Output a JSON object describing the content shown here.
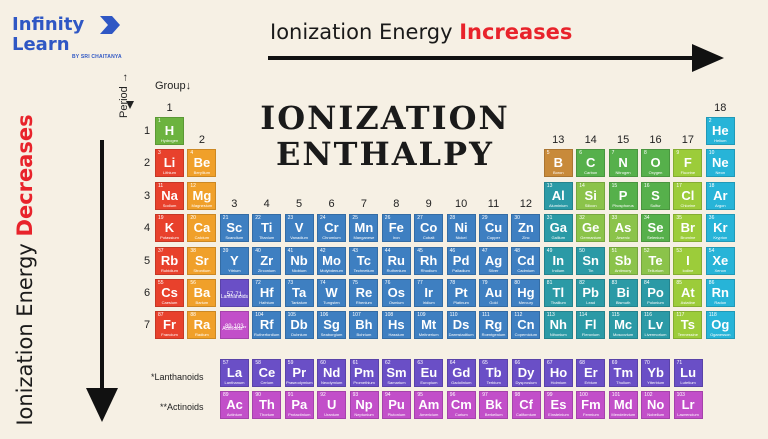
{
  "logo": {
    "line1": "Infinity",
    "line2": "Learn",
    "tagline": "BY SRI CHAITANYA"
  },
  "ie_title": {
    "prefix": "Ionization Energy ",
    "accent": "Increases"
  },
  "side_title": {
    "prefix": "Ionization Energy ",
    "accent": "Decreases"
  },
  "main_title": {
    "line1": "IONIZATION",
    "line2": "ENTHALPY"
  },
  "labels": {
    "group": "Group↓",
    "period": "Period →"
  },
  "series_labels": {
    "lanthanoids": "*Lanthanoids",
    "actinoids": "**Actinoids"
  },
  "colors": {
    "H": "#6cb33f",
    "alkali": "#e8412c",
    "alkaline": "#f0a02a",
    "transition": "#3e7fc1",
    "post": "#2b9aa6",
    "metalloid": "#8bc34a",
    "nonmetal": "#56b04b",
    "halogen": "#9ccc3a",
    "noble": "#27b4d8",
    "lan": "#6a4fc6",
    "act": "#c24fc9",
    "boron": "#c88a3a",
    "bg": "#f6f0e4",
    "accent": "#e8232b",
    "brand": "#2f57c4"
  },
  "groups": [
    "1",
    "2",
    "3",
    "4",
    "5",
    "6",
    "7",
    "8",
    "9",
    "10",
    "11",
    "12",
    "13",
    "14",
    "15",
    "16",
    "17",
    "18"
  ],
  "periods": [
    "1",
    "2",
    "3",
    "4",
    "5",
    "6",
    "7"
  ],
  "elements": [
    {
      "s": "H",
      "n": "1",
      "nm": "Hydrogen",
      "c": "H",
      "r": 1,
      "g": 1
    },
    {
      "s": "He",
      "n": "2",
      "nm": "Helium",
      "c": "noble",
      "r": 1,
      "g": 18
    },
    {
      "s": "Li",
      "n": "3",
      "nm": "Lithium",
      "c": "alkali",
      "r": 2,
      "g": 1
    },
    {
      "s": "Be",
      "n": "4",
      "nm": "Beryllium",
      "c": "alkaline",
      "r": 2,
      "g": 2
    },
    {
      "s": "B",
      "n": "5",
      "nm": "Boron",
      "c": "boron",
      "r": 2,
      "g": 13
    },
    {
      "s": "C",
      "n": "6",
      "nm": "Carbon",
      "c": "nonmetal",
      "r": 2,
      "g": 14
    },
    {
      "s": "N",
      "n": "7",
      "nm": "Nitrogen",
      "c": "nonmetal",
      "r": 2,
      "g": 15
    },
    {
      "s": "O",
      "n": "8",
      "nm": "Oxygen",
      "c": "nonmetal",
      "r": 2,
      "g": 16
    },
    {
      "s": "F",
      "n": "9",
      "nm": "Fluorine",
      "c": "halogen",
      "r": 2,
      "g": 17
    },
    {
      "s": "Ne",
      "n": "10",
      "nm": "Neon",
      "c": "noble",
      "r": 2,
      "g": 18
    },
    {
      "s": "Na",
      "n": "11",
      "nm": "Sodium",
      "c": "alkali",
      "r": 3,
      "g": 1
    },
    {
      "s": "Mg",
      "n": "12",
      "nm": "Magnesium",
      "c": "alkaline",
      "r": 3,
      "g": 2
    },
    {
      "s": "Al",
      "n": "13",
      "nm": "Aluminium",
      "c": "post",
      "r": 3,
      "g": 13
    },
    {
      "s": "Si",
      "n": "14",
      "nm": "Silicon",
      "c": "metalloid",
      "r": 3,
      "g": 14
    },
    {
      "s": "P",
      "n": "15",
      "nm": "Phosphorus",
      "c": "nonmetal",
      "r": 3,
      "g": 15
    },
    {
      "s": "S",
      "n": "16",
      "nm": "Sulfur",
      "c": "nonmetal",
      "r": 3,
      "g": 16
    },
    {
      "s": "Cl",
      "n": "17",
      "nm": "Chlorine",
      "c": "halogen",
      "r": 3,
      "g": 17
    },
    {
      "s": "Ar",
      "n": "18",
      "nm": "Argon",
      "c": "noble",
      "r": 3,
      "g": 18
    },
    {
      "s": "K",
      "n": "19",
      "nm": "Potassium",
      "c": "alkali",
      "r": 4,
      "g": 1
    },
    {
      "s": "Ca",
      "n": "20",
      "nm": "Calcium",
      "c": "alkaline",
      "r": 4,
      "g": 2
    },
    {
      "s": "Sc",
      "n": "21",
      "nm": "Scandium",
      "c": "transition",
      "r": 4,
      "g": 3
    },
    {
      "s": "Ti",
      "n": "22",
      "nm": "Titanium",
      "c": "transition",
      "r": 4,
      "g": 4
    },
    {
      "s": "V",
      "n": "23",
      "nm": "Vanadium",
      "c": "transition",
      "r": 4,
      "g": 5
    },
    {
      "s": "Cr",
      "n": "24",
      "nm": "Chromium",
      "c": "transition",
      "r": 4,
      "g": 6
    },
    {
      "s": "Mn",
      "n": "25",
      "nm": "Manganese",
      "c": "transition",
      "r": 4,
      "g": 7
    },
    {
      "s": "Fe",
      "n": "26",
      "nm": "Iron",
      "c": "transition",
      "r": 4,
      "g": 8
    },
    {
      "s": "Co",
      "n": "27",
      "nm": "Cobalt",
      "c": "transition",
      "r": 4,
      "g": 9
    },
    {
      "s": "Ni",
      "n": "28",
      "nm": "Nickel",
      "c": "transition",
      "r": 4,
      "g": 10
    },
    {
      "s": "Cu",
      "n": "29",
      "nm": "Copper",
      "c": "transition",
      "r": 4,
      "g": 11
    },
    {
      "s": "Zn",
      "n": "30",
      "nm": "Zinc",
      "c": "transition",
      "r": 4,
      "g": 12
    },
    {
      "s": "Ga",
      "n": "31",
      "nm": "Gallium",
      "c": "post",
      "r": 4,
      "g": 13
    },
    {
      "s": "Ge",
      "n": "32",
      "nm": "Germanium",
      "c": "metalloid",
      "r": 4,
      "g": 14
    },
    {
      "s": "As",
      "n": "33",
      "nm": "Arsenic",
      "c": "metalloid",
      "r": 4,
      "g": 15
    },
    {
      "s": "Se",
      "n": "34",
      "nm": "Selenium",
      "c": "nonmetal",
      "r": 4,
      "g": 16
    },
    {
      "s": "Br",
      "n": "35",
      "nm": "Bromine",
      "c": "halogen",
      "r": 4,
      "g": 17
    },
    {
      "s": "Kr",
      "n": "36",
      "nm": "Krypton",
      "c": "noble",
      "r": 4,
      "g": 18
    },
    {
      "s": "Rb",
      "n": "37",
      "nm": "Rubidium",
      "c": "alkali",
      "r": 5,
      "g": 1
    },
    {
      "s": "Sr",
      "n": "38",
      "nm": "Strontium",
      "c": "alkaline",
      "r": 5,
      "g": 2
    },
    {
      "s": "Y",
      "n": "39",
      "nm": "Yttrium",
      "c": "transition",
      "r": 5,
      "g": 3
    },
    {
      "s": "Zr",
      "n": "40",
      "nm": "Zirconium",
      "c": "transition",
      "r": 5,
      "g": 4
    },
    {
      "s": "Nb",
      "n": "41",
      "nm": "Niobium",
      "c": "transition",
      "r": 5,
      "g": 5
    },
    {
      "s": "Mo",
      "n": "42",
      "nm": "Molybdenum",
      "c": "transition",
      "r": 5,
      "g": 6
    },
    {
      "s": "Tc",
      "n": "43",
      "nm": "Technetium",
      "c": "transition",
      "r": 5,
      "g": 7
    },
    {
      "s": "Ru",
      "n": "44",
      "nm": "Ruthenium",
      "c": "transition",
      "r": 5,
      "g": 8
    },
    {
      "s": "Rh",
      "n": "45",
      "nm": "Rhodium",
      "c": "transition",
      "r": 5,
      "g": 9
    },
    {
      "s": "Pd",
      "n": "46",
      "nm": "Palladium",
      "c": "transition",
      "r": 5,
      "g": 10
    },
    {
      "s": "Ag",
      "n": "47",
      "nm": "Silver",
      "c": "transition",
      "r": 5,
      "g": 11
    },
    {
      "s": "Cd",
      "n": "48",
      "nm": "Cadmium",
      "c": "transition",
      "r": 5,
      "g": 12
    },
    {
      "s": "In",
      "n": "49",
      "nm": "Indium",
      "c": "post",
      "r": 5,
      "g": 13
    },
    {
      "s": "Sn",
      "n": "50",
      "nm": "Tin",
      "c": "post",
      "r": 5,
      "g": 14
    },
    {
      "s": "Sb",
      "n": "51",
      "nm": "Antimony",
      "c": "metalloid",
      "r": 5,
      "g": 15
    },
    {
      "s": "Te",
      "n": "52",
      "nm": "Tellurium",
      "c": "metalloid",
      "r": 5,
      "g": 16
    },
    {
      "s": "I",
      "n": "53",
      "nm": "Iodine",
      "c": "halogen",
      "r": 5,
      "g": 17
    },
    {
      "s": "Xe",
      "n": "54",
      "nm": "Xenon",
      "c": "noble",
      "r": 5,
      "g": 18
    },
    {
      "s": "Cs",
      "n": "55",
      "nm": "Caesium",
      "c": "alkali",
      "r": 6,
      "g": 1
    },
    {
      "s": "Ba",
      "n": "56",
      "nm": "Barium",
      "c": "alkaline",
      "r": 6,
      "g": 2
    },
    {
      "s": "57-71",
      "n": "",
      "nm": "Lanthanoids*",
      "c": "lan",
      "r": 6,
      "g": 3,
      "ph": true
    },
    {
      "s": "Hf",
      "n": "72",
      "nm": "Hafnium",
      "c": "transition",
      "r": 6,
      "g": 4
    },
    {
      "s": "Ta",
      "n": "73",
      "nm": "Tantalum",
      "c": "transition",
      "r": 6,
      "g": 5
    },
    {
      "s": "W",
      "n": "74",
      "nm": "Tungsten",
      "c": "transition",
      "r": 6,
      "g": 6
    },
    {
      "s": "Re",
      "n": "75",
      "nm": "Rhenium",
      "c": "transition",
      "r": 6,
      "g": 7
    },
    {
      "s": "Os",
      "n": "76",
      "nm": "Osmium",
      "c": "transition",
      "r": 6,
      "g": 8
    },
    {
      "s": "Ir",
      "n": "77",
      "nm": "Iridium",
      "c": "transition",
      "r": 6,
      "g": 9
    },
    {
      "s": "Pt",
      "n": "78",
      "nm": "Platinum",
      "c": "transition",
      "r": 6,
      "g": 10
    },
    {
      "s": "Au",
      "n": "79",
      "nm": "Gold",
      "c": "transition",
      "r": 6,
      "g": 11
    },
    {
      "s": "Hg",
      "n": "80",
      "nm": "Mercury",
      "c": "transition",
      "r": 6,
      "g": 12
    },
    {
      "s": "Tl",
      "n": "81",
      "nm": "Thallium",
      "c": "post",
      "r": 6,
      "g": 13
    },
    {
      "s": "Pb",
      "n": "82",
      "nm": "Lead",
      "c": "post",
      "r": 6,
      "g": 14
    },
    {
      "s": "Bi",
      "n": "83",
      "nm": "Bismuth",
      "c": "post",
      "r": 6,
      "g": 15
    },
    {
      "s": "Po",
      "n": "84",
      "nm": "Polonium",
      "c": "post",
      "r": 6,
      "g": 16
    },
    {
      "s": "At",
      "n": "85",
      "nm": "Astatine",
      "c": "halogen",
      "r": 6,
      "g": 17
    },
    {
      "s": "Rn",
      "n": "86",
      "nm": "Radon",
      "c": "noble",
      "r": 6,
      "g": 18
    },
    {
      "s": "Fr",
      "n": "87",
      "nm": "Francium",
      "c": "alkali",
      "r": 7,
      "g": 1
    },
    {
      "s": "Ra",
      "n": "88",
      "nm": "Radium",
      "c": "alkaline",
      "r": 7,
      "g": 2
    },
    {
      "s": "89-103",
      "n": "",
      "nm": "Actinoids**",
      "c": "act",
      "r": 7,
      "g": 3,
      "ph": true
    },
    {
      "s": "Rf",
      "n": "104",
      "nm": "Rutherfordium",
      "c": "transition",
      "r": 7,
      "g": 4
    },
    {
      "s": "Db",
      "n": "105",
      "nm": "Dubnium",
      "c": "transition",
      "r": 7,
      "g": 5
    },
    {
      "s": "Sg",
      "n": "106",
      "nm": "Seaborgium",
      "c": "transition",
      "r": 7,
      "g": 6
    },
    {
      "s": "Bh",
      "n": "107",
      "nm": "Bohrium",
      "c": "transition",
      "r": 7,
      "g": 7
    },
    {
      "s": "Hs",
      "n": "108",
      "nm": "Hassium",
      "c": "transition",
      "r": 7,
      "g": 8
    },
    {
      "s": "Mt",
      "n": "109",
      "nm": "Meitnerium",
      "c": "transition",
      "r": 7,
      "g": 9
    },
    {
      "s": "Ds",
      "n": "110",
      "nm": "Darmstadtium",
      "c": "transition",
      "r": 7,
      "g": 10
    },
    {
      "s": "Rg",
      "n": "111",
      "nm": "Roentgenium",
      "c": "transition",
      "r": 7,
      "g": 11
    },
    {
      "s": "Cn",
      "n": "112",
      "nm": "Copernicium",
      "c": "transition",
      "r": 7,
      "g": 12
    },
    {
      "s": "Nh",
      "n": "113",
      "nm": "Nihonium",
      "c": "post",
      "r": 7,
      "g": 13
    },
    {
      "s": "Fl",
      "n": "114",
      "nm": "Flerovium",
      "c": "post",
      "r": 7,
      "g": 14
    },
    {
      "s": "Mc",
      "n": "115",
      "nm": "Moscovium",
      "c": "post",
      "r": 7,
      "g": 15
    },
    {
      "s": "Lv",
      "n": "116",
      "nm": "Livermorium",
      "c": "post",
      "r": 7,
      "g": 16
    },
    {
      "s": "Ts",
      "n": "117",
      "nm": "Tennessine",
      "c": "halogen",
      "r": 7,
      "g": 17
    },
    {
      "s": "Og",
      "n": "118",
      "nm": "Oganesson",
      "c": "noble",
      "r": 7,
      "g": 18
    }
  ],
  "lanthanoids": [
    {
      "s": "La",
      "n": "57",
      "nm": "Lanthanum"
    },
    {
      "s": "Ce",
      "n": "58",
      "nm": "Cerium"
    },
    {
      "s": "Pr",
      "n": "59",
      "nm": "Praseodymium"
    },
    {
      "s": "Nd",
      "n": "60",
      "nm": "Neodymium"
    },
    {
      "s": "Pm",
      "n": "61",
      "nm": "Promethium"
    },
    {
      "s": "Sm",
      "n": "62",
      "nm": "Samarium"
    },
    {
      "s": "Eu",
      "n": "63",
      "nm": "Europium"
    },
    {
      "s": "Gd",
      "n": "64",
      "nm": "Gadolinium"
    },
    {
      "s": "Tb",
      "n": "65",
      "nm": "Terbium"
    },
    {
      "s": "Dy",
      "n": "66",
      "nm": "Dysprosium"
    },
    {
      "s": "Ho",
      "n": "67",
      "nm": "Holmium"
    },
    {
      "s": "Er",
      "n": "68",
      "nm": "Erbium"
    },
    {
      "s": "Tm",
      "n": "69",
      "nm": "Thulium"
    },
    {
      "s": "Yb",
      "n": "70",
      "nm": "Ytterbium"
    },
    {
      "s": "Lu",
      "n": "71",
      "nm": "Lutetium"
    }
  ],
  "actinoids": [
    {
      "s": "Ac",
      "n": "89",
      "nm": "Actinium"
    },
    {
      "s": "Th",
      "n": "90",
      "nm": "Thorium"
    },
    {
      "s": "Pa",
      "n": "91",
      "nm": "Protactinium"
    },
    {
      "s": "U",
      "n": "92",
      "nm": "Uranium"
    },
    {
      "s": "Np",
      "n": "93",
      "nm": "Neptunium"
    },
    {
      "s": "Pu",
      "n": "94",
      "nm": "Plutonium"
    },
    {
      "s": "Am",
      "n": "95",
      "nm": "Americium"
    },
    {
      "s": "Cm",
      "n": "96",
      "nm": "Curium"
    },
    {
      "s": "Bk",
      "n": "97",
      "nm": "Berkelium"
    },
    {
      "s": "Cf",
      "n": "98",
      "nm": "Californium"
    },
    {
      "s": "Es",
      "n": "99",
      "nm": "Einsteinium"
    },
    {
      "s": "Fm",
      "n": "100",
      "nm": "Fermium"
    },
    {
      "s": "Md",
      "n": "101",
      "nm": "Mendelevium"
    },
    {
      "s": "No",
      "n": "102",
      "nm": "Nobelium"
    },
    {
      "s": "Lr",
      "n": "103",
      "nm": "Lawrencium"
    }
  ]
}
